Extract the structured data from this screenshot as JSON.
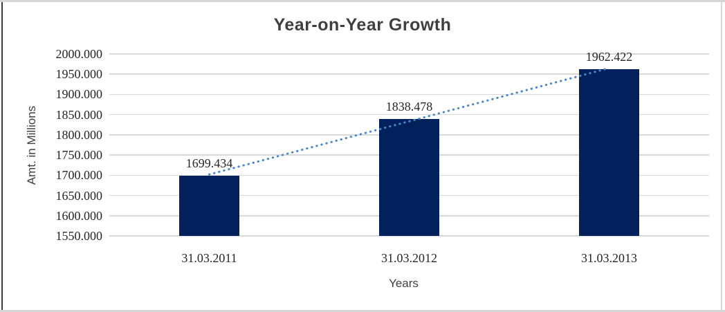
{
  "chart_data": {
    "type": "bar",
    "title": "Year-on-Year Growth",
    "categories": [
      "31.03.2011",
      "31.03.2012",
      "31.03.2013"
    ],
    "values": [
      1699.434,
      1838.478,
      1962.422
    ],
    "data_labels": [
      "1699.434",
      "1838.478",
      "1962.422"
    ],
    "xlabel": "Years",
    "ylabel": "Amt. in Millions",
    "ylim": [
      1550,
      2000
    ],
    "ytick_step": 50,
    "ytick_labels": [
      "2000.000",
      "1950.000",
      "1900.000",
      "1850.000",
      "1800.000",
      "1750.000",
      "1700.000",
      "1650.000",
      "1600.000",
      "1550.000"
    ],
    "grid": true,
    "legend": "none",
    "bar_color": "#02215C",
    "trendline": {
      "style": "dotted",
      "color": "#4A86C8"
    },
    "gridline_color": "#D9D9D9",
    "title_color": "#3F3F3F",
    "tick_label_color": "#262626"
  }
}
